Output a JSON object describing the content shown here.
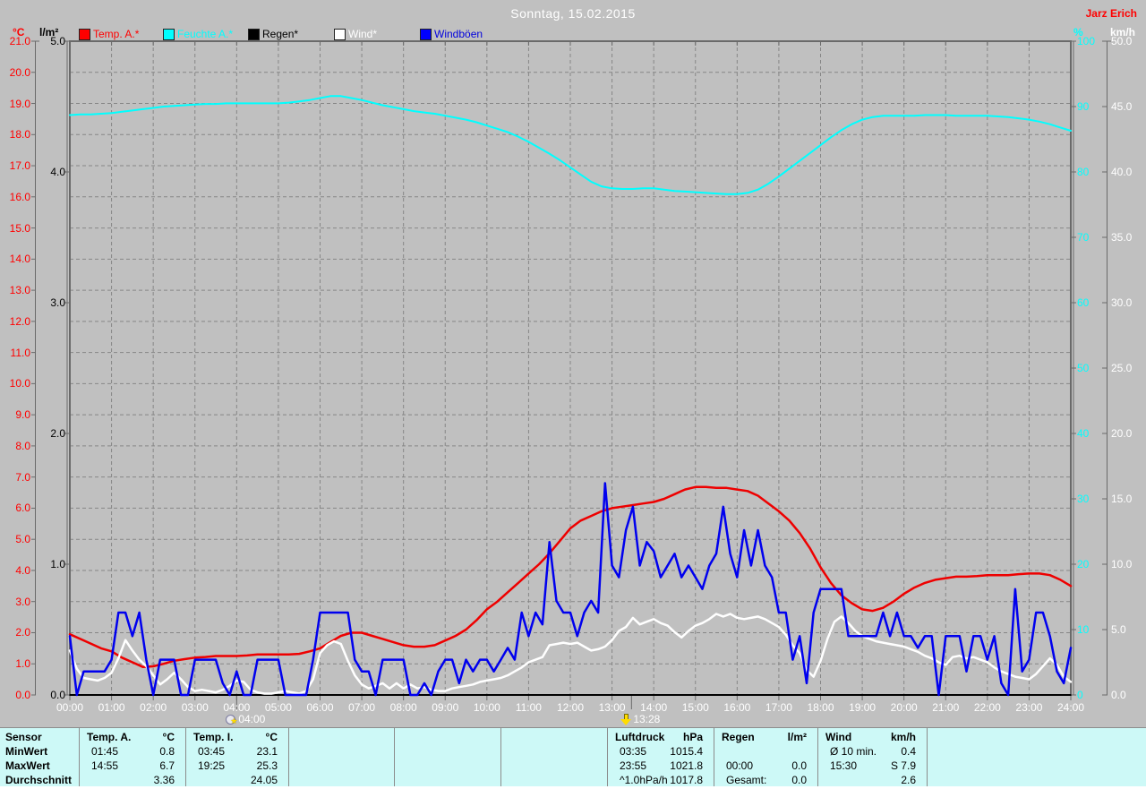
{
  "header": {
    "title": "Sonntag, 15.02.2015",
    "author": "Jarz Erich"
  },
  "legend": {
    "left_units": [
      {
        "label": "°C",
        "color": "#ff0000"
      },
      {
        "label": "l/m²",
        "color": "#000000"
      }
    ],
    "right_units": [
      {
        "label": "%",
        "color": "#00ffff"
      },
      {
        "label": "km/h",
        "color": "#ffffff"
      }
    ],
    "items": [
      {
        "label": "Temp. A.*",
        "color": "#ff0000",
        "square": "#ff0000"
      },
      {
        "label": "Feuchte A.*",
        "color": "#00ffff",
        "square": "#00ffff"
      },
      {
        "label": "Regen*",
        "color": "#000000",
        "square": "#000000"
      },
      {
        "label": "Wind*",
        "color": "#ffffff",
        "square": "#ffffff"
      },
      {
        "label": "Windböen",
        "color": "#0000dd",
        "square": "#0000ff"
      }
    ]
  },
  "chart_data": {
    "type": "line",
    "title": "Sonntag, 15.02.2015",
    "grid": true,
    "x_axis": {
      "labels": [
        "00:00",
        "01:00",
        "02:00",
        "03:00",
        "04:00",
        "05:00",
        "06:00",
        "07:00",
        "08:00",
        "09:00",
        "10:00",
        "11:00",
        "12:00",
        "13:00",
        "14:00",
        "15:00",
        "16:00",
        "17:00",
        "18:00",
        "19:00",
        "20:00",
        "21:00",
        "22:00",
        "23:00",
        "24:00"
      ],
      "hours_range": [
        0,
        24
      ]
    },
    "axes": {
      "temp_c": {
        "label": "°C",
        "color": "#ff0000",
        "min": 0,
        "max": 21,
        "ticks": [
          "21.0",
          "20.0",
          "19.0",
          "18.0",
          "17.0",
          "16.0",
          "15.0",
          "14.0",
          "13.0",
          "12.0",
          "11.0",
          "10.0",
          "9.0",
          "8.0",
          "7.0",
          "6.0",
          "5.0",
          "4.0",
          "3.0",
          "2.0",
          "1.0",
          "0.0"
        ]
      },
      "rain_lm2": {
        "label": "l/m²",
        "color": "#000000",
        "min": 0,
        "max": 5,
        "ticks": [
          "5.0",
          "4.0",
          "3.0",
          "2.0",
          "1.0",
          "0.0"
        ]
      },
      "humidity_pct": {
        "label": "%",
        "color": "#00ffff",
        "min": 0,
        "max": 100,
        "ticks": [
          "100",
          "90",
          "80",
          "70",
          "60",
          "50",
          "40",
          "30",
          "20",
          "10",
          "0"
        ]
      },
      "wind_kmh": {
        "label": "km/h",
        "color": "#ffffff",
        "min": 0,
        "max": 50,
        "ticks": [
          "50.0",
          "45.0",
          "40.0",
          "35.0",
          "30.0",
          "25.0",
          "20.0",
          "15.0",
          "10.0",
          "5.0",
          "0.0"
        ]
      }
    },
    "series": [
      {
        "name": "Regen*",
        "axis": "rain_lm2",
        "color": "#000000",
        "width": 1.5,
        "interval_min": 60,
        "values": [
          0,
          0,
          0,
          0,
          0,
          0,
          0,
          0,
          0,
          0,
          0,
          0,
          0,
          0,
          0,
          0,
          0,
          0,
          0,
          0,
          0,
          0,
          0,
          0,
          0
        ]
      },
      {
        "name": "Feuchte A.*",
        "axis": "humidity_pct",
        "color": "#00ffff",
        "width": 2,
        "interval_min": 15,
        "values": [
          88.7,
          88.8,
          88.8,
          88.9,
          89.0,
          89.2,
          89.4,
          89.6,
          89.8,
          90.0,
          90.1,
          90.2,
          90.3,
          90.4,
          90.4,
          90.5,
          90.5,
          90.5,
          90.5,
          90.5,
          90.5,
          90.6,
          90.8,
          91.0,
          91.3,
          91.6,
          91.6,
          91.3,
          91.0,
          90.6,
          90.2,
          89.9,
          89.6,
          89.3,
          89.1,
          88.9,
          88.6,
          88.3,
          88.0,
          87.6,
          87.1,
          86.6,
          86.1,
          85.4,
          84.6,
          83.7,
          82.8,
          81.8,
          80.7,
          79.6,
          78.5,
          77.8,
          77.5,
          77.4,
          77.4,
          77.5,
          77.5,
          77.3,
          77.1,
          77.0,
          76.9,
          76.8,
          76.7,
          76.6,
          76.6,
          76.8,
          77.3,
          78.2,
          79.3,
          80.5,
          81.7,
          82.9,
          84.1,
          85.3,
          86.4,
          87.3,
          88.0,
          88.4,
          88.6,
          88.6,
          88.6,
          88.6,
          88.7,
          88.7,
          88.7,
          88.6,
          88.6,
          88.6,
          88.6,
          88.5,
          88.4,
          88.2,
          88.0,
          87.7,
          87.3,
          86.8,
          86.3
        ]
      },
      {
        "name": "Temp. A.*",
        "axis": "temp_c",
        "color": "#ee0000",
        "width": 2.5,
        "interval_min": 15,
        "values": [
          1.95,
          1.8,
          1.65,
          1.5,
          1.4,
          1.2,
          1.05,
          0.9,
          0.92,
          1.0,
          1.1,
          1.15,
          1.2,
          1.22,
          1.25,
          1.25,
          1.25,
          1.27,
          1.3,
          1.3,
          1.3,
          1.3,
          1.32,
          1.4,
          1.5,
          1.7,
          1.9,
          2.0,
          2.0,
          1.9,
          1.8,
          1.7,
          1.6,
          1.55,
          1.55,
          1.6,
          1.75,
          1.9,
          2.1,
          2.4,
          2.75,
          3.0,
          3.3,
          3.6,
          3.9,
          4.2,
          4.55,
          4.95,
          5.35,
          5.6,
          5.75,
          5.9,
          6.0,
          6.05,
          6.1,
          6.15,
          6.2,
          6.3,
          6.45,
          6.6,
          6.68,
          6.68,
          6.65,
          6.65,
          6.6,
          6.55,
          6.4,
          6.15,
          5.9,
          5.6,
          5.2,
          4.7,
          4.1,
          3.6,
          3.2,
          2.95,
          2.75,
          2.7,
          2.8,
          3.0,
          3.25,
          3.45,
          3.6,
          3.7,
          3.75,
          3.8,
          3.8,
          3.82,
          3.85,
          3.85,
          3.85,
          3.88,
          3.9,
          3.9,
          3.85,
          3.7,
          3.5
        ]
      },
      {
        "name": "Wind*",
        "axis": "wind_kmh",
        "color": "#ffffff",
        "width": 2.5,
        "interval_min": 10,
        "values": [
          3.4,
          2.0,
          1.3,
          1.2,
          1.1,
          1.3,
          1.7,
          2.8,
          4.2,
          3.4,
          2.7,
          2.2,
          1.5,
          0.8,
          1.2,
          1.7,
          1.2,
          0.6,
          0.3,
          0.4,
          0.3,
          0.2,
          0.4,
          0.7,
          1.1,
          1.0,
          0.4,
          0.2,
          0.1,
          0.1,
          0.2,
          0.3,
          0.2,
          0.1,
          0.3,
          1.2,
          3.2,
          3.8,
          4.1,
          3.9,
          2.6,
          1.5,
          0.8,
          0.5,
          0.7,
          0.9,
          0.5,
          0.9,
          0.5,
          0.8,
          0.5,
          0.6,
          0.4,
          0.3,
          0.3,
          0.5,
          0.6,
          0.7,
          0.8,
          1.0,
          1.1,
          1.2,
          1.3,
          1.5,
          1.8,
          2.1,
          2.5,
          2.7,
          2.9,
          3.8,
          3.9,
          4.0,
          3.9,
          4.0,
          3.7,
          3.4,
          3.5,
          3.7,
          4.2,
          4.9,
          5.2,
          5.9,
          5.4,
          5.6,
          5.8,
          5.5,
          5.3,
          4.8,
          4.4,
          4.9,
          5.3,
          5.5,
          5.8,
          6.2,
          6.0,
          6.2,
          5.9,
          5.8,
          5.9,
          6.0,
          5.8,
          5.5,
          5.2,
          4.6,
          3.8,
          3.2,
          1.9,
          1.4,
          2.6,
          4.3,
          5.6,
          6.0,
          5.5,
          4.9,
          4.5,
          4.3,
          4.1,
          4.0,
          3.9,
          3.8,
          3.7,
          3.5,
          3.3,
          3.0,
          2.8,
          2.5,
          2.3,
          2.9,
          3.0,
          2.8,
          2.9,
          2.7,
          2.5,
          2.1,
          1.8,
          1.6,
          1.4,
          1.3,
          1.2,
          1.6,
          2.2,
          2.8,
          2.3,
          1.4,
          1.0
        ]
      },
      {
        "name": "Windböen",
        "axis": "wind_kmh",
        "color": "#0000ee",
        "width": 2.5,
        "interval_min": 10,
        "values": [
          4.5,
          0,
          1.8,
          1.8,
          1.8,
          1.8,
          2.7,
          6.3,
          6.3,
          4.5,
          6.3,
          2.7,
          0,
          2.7,
          2.7,
          2.7,
          0,
          0,
          2.7,
          2.7,
          2.7,
          2.7,
          0.9,
          0,
          1.8,
          0,
          0,
          2.7,
          2.7,
          2.7,
          2.7,
          0,
          0,
          0,
          0,
          2.7,
          6.3,
          6.3,
          6.3,
          6.3,
          6.3,
          2.7,
          1.8,
          1.8,
          0,
          2.7,
          2.7,
          2.7,
          2.7,
          0,
          0,
          0.9,
          0,
          1.8,
          2.7,
          2.7,
          0.9,
          2.7,
          1.8,
          2.7,
          2.7,
          1.8,
          2.7,
          3.6,
          2.7,
          6.3,
          4.5,
          6.3,
          5.4,
          11.7,
          7.2,
          6.3,
          6.3,
          4.5,
          6.3,
          7.2,
          6.3,
          16.2,
          9.9,
          9.0,
          12.6,
          14.4,
          9.9,
          11.7,
          11.0,
          9.0,
          9.9,
          10.8,
          9.0,
          9.9,
          9.0,
          8.1,
          9.9,
          10.8,
          14.4,
          10.8,
          9.0,
          12.6,
          9.9,
          12.6,
          9.9,
          9.0,
          6.3,
          6.3,
          2.7,
          4.5,
          0.9,
          6.3,
          8.1,
          8.1,
          8.1,
          8.1,
          4.5,
          4.5,
          4.5,
          4.5,
          4.5,
          6.3,
          4.5,
          6.3,
          4.5,
          4.5,
          3.6,
          4.5,
          4.5,
          0,
          4.5,
          4.5,
          4.5,
          1.8,
          4.5,
          4.5,
          2.7,
          4.5,
          0.9,
          0,
          8.1,
          1.8,
          2.7,
          6.3,
          6.3,
          4.5,
          1.8,
          0.9,
          3.6
        ]
      }
    ],
    "markers": [
      {
        "time": "04:00",
        "x_hours": 4.0,
        "icon": "moon-rise-icon"
      },
      {
        "time": "13:28",
        "x_hours": 13.467,
        "icon": "moon-set-icon"
      }
    ]
  },
  "summary_table": {
    "row_labels": [
      "Sensor",
      "MinWert",
      "MaxWert",
      "Durchschnitt"
    ],
    "columns": [
      {
        "name": "Temp. A.",
        "unit": "°C",
        "rows": [
          [
            "01:45",
            "0.8"
          ],
          [
            "14:55",
            "6.7"
          ],
          [
            "",
            "3.36"
          ]
        ]
      },
      {
        "name": "Temp. I.",
        "unit": "°C",
        "rows": [
          [
            "03:45",
            "23.1"
          ],
          [
            "19:25",
            "25.3"
          ],
          [
            "",
            "24.05"
          ]
        ]
      },
      {
        "name": "",
        "unit": "",
        "rows": [
          [
            "",
            ""
          ],
          [
            "",
            ""
          ],
          [
            "",
            ""
          ]
        ]
      },
      {
        "name": "",
        "unit": "",
        "rows": [
          [
            "",
            ""
          ],
          [
            "",
            ""
          ],
          [
            "",
            ""
          ]
        ]
      },
      {
        "name": "",
        "unit": "",
        "rows": [
          [
            "",
            ""
          ],
          [
            "",
            ""
          ],
          [
            "",
            ""
          ]
        ]
      },
      {
        "name": "Luftdruck",
        "unit": "hPa",
        "rows": [
          [
            "03:35",
            "1015.4"
          ],
          [
            "23:55",
            "1021.8"
          ],
          [
            "^1.0hPa/h",
            "1017.8"
          ]
        ]
      },
      {
        "name": "Regen",
        "unit": "l/m²",
        "rows": [
          [
            "",
            ""
          ],
          [
            "00:00",
            "0.0"
          ],
          [
            "Gesamt:",
            "0.0"
          ]
        ]
      },
      {
        "name": "Wind",
        "unit": "km/h",
        "rows": [
          [
            "Ø 10 min.",
            "0.4"
          ],
          [
            "15:30",
            "S 7.9"
          ],
          [
            "",
            "2.6"
          ]
        ]
      },
      {
        "name": "",
        "unit": "",
        "rows": [
          [
            "",
            ""
          ],
          [
            "",
            ""
          ],
          [
            "",
            ""
          ]
        ]
      }
    ]
  },
  "colors": {
    "background": "#c0c0c0",
    "plot_border": "#6a6a6a",
    "grid": "#868686",
    "axis_bottom": "#000000",
    "table_bg": "#cdf9f7",
    "table_line": "#8c8c8c",
    "title_text": "#ffffff",
    "author_text": "#ff0000",
    "x_label_text": "#ffffff"
  }
}
